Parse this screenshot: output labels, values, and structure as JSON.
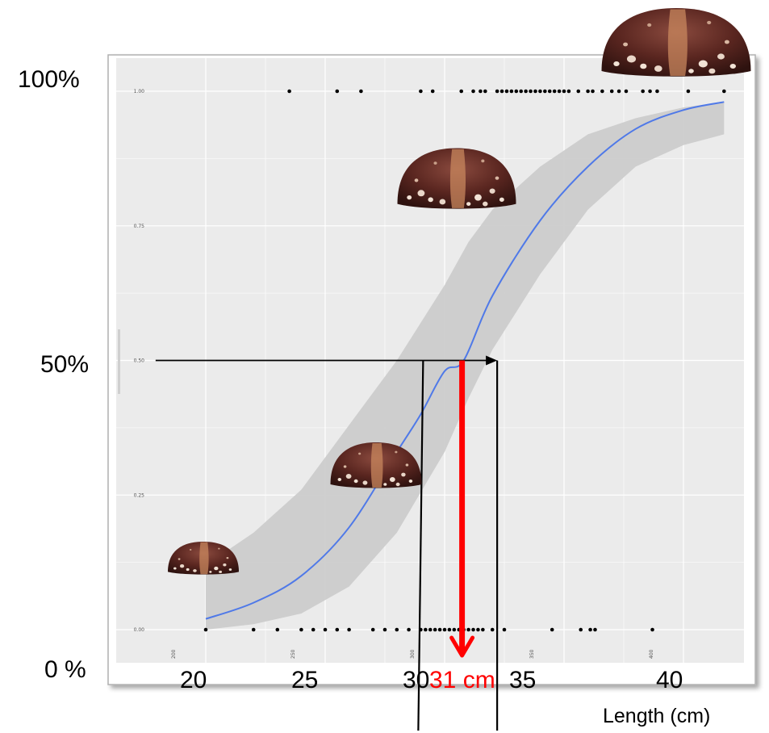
{
  "chart_data": {
    "type": "line",
    "title": "",
    "xlabel": "Length (cm)",
    "ylabel": "",
    "x_range": [
      18,
      42
    ],
    "y_range": [
      0,
      1
    ],
    "grid": true,
    "legend": "none",
    "outer_y_labels": [
      "100%",
      "50%",
      "0 %"
    ],
    "outer_x_labels": [
      "20",
      "25",
      "30",
      "35",
      "40"
    ],
    "inner_y_ticks": [
      "0.00",
      "0.25",
      "0.50",
      "0.75",
      "1.00"
    ],
    "inner_x_ticks": [
      "200",
      "250",
      "300",
      "350",
      "400"
    ],
    "l50_label": "31 cm",
    "fit_curve": {
      "name": "",
      "color": "#4f79e8",
      "x": [
        20,
        22,
        24,
        26,
        28,
        29,
        30,
        30.8,
        32,
        34,
        36,
        38,
        40,
        41.7
      ],
      "y": [
        0.02,
        0.05,
        0.1,
        0.19,
        0.33,
        0.4,
        0.48,
        0.5,
        0.62,
        0.76,
        0.86,
        0.93,
        0.965,
        0.98
      ]
    },
    "confidence_band": {
      "color": "#cccccc",
      "x": [
        20,
        22,
        24,
        26,
        28,
        30,
        31,
        32,
        34,
        36,
        38,
        40,
        41.7
      ],
      "lower": [
        0.0,
        0.01,
        0.03,
        0.08,
        0.18,
        0.33,
        0.43,
        0.52,
        0.66,
        0.78,
        0.86,
        0.9,
        0.92
      ],
      "upper": [
        0.12,
        0.18,
        0.26,
        0.38,
        0.5,
        0.64,
        0.72,
        0.78,
        0.86,
        0.92,
        0.95,
        0.97,
        0.98
      ]
    },
    "points_at_1": [
      23.5,
      25.5,
      26.5,
      29.0,
      29.5,
      30.7,
      31.2,
      31.5,
      31.7,
      32.2,
      32.4,
      32.6,
      32.8,
      33.0,
      33.2,
      33.4,
      33.6,
      33.8,
      34.0,
      34.2,
      34.4,
      34.6,
      34.8,
      35.0,
      35.2,
      35.6,
      36.0,
      36.2,
      36.6,
      37.0,
      37.3,
      37.6,
      38.3,
      38.6,
      38.9,
      40.2,
      41.7
    ],
    "points_at_0": [
      20.0,
      22.0,
      23.0,
      24.0,
      24.5,
      25.0,
      25.5,
      26.0,
      27.0,
      27.5,
      28.0,
      28.5,
      29.0,
      29.2,
      29.4,
      29.6,
      29.8,
      30.0,
      30.2,
      30.4,
      30.6,
      30.8,
      31.0,
      31.2,
      31.4,
      31.6,
      32.0,
      32.5,
      34.5,
      35.7,
      36.1,
      36.3,
      38.7
    ],
    "reference_lines": {
      "horizontal_y": 0.5,
      "horizontal_from_x": 17.9,
      "horizontal_to_x": 32.2,
      "ci_left_x": 29.1,
      "ci_right_x": 32.2,
      "l50_x": 31.0
    },
    "colors": {
      "panel": "#ebebeb",
      "grid": "#ffffff",
      "points": "#000000",
      "reference_lines": "#000000",
      "l50_arrow": "#ff0000",
      "l50_text": "#ff0000"
    },
    "icons": [
      "sea-urchin-large",
      "sea-urchin-medium-large",
      "sea-urchin-medium",
      "sea-urchin-small"
    ]
  }
}
